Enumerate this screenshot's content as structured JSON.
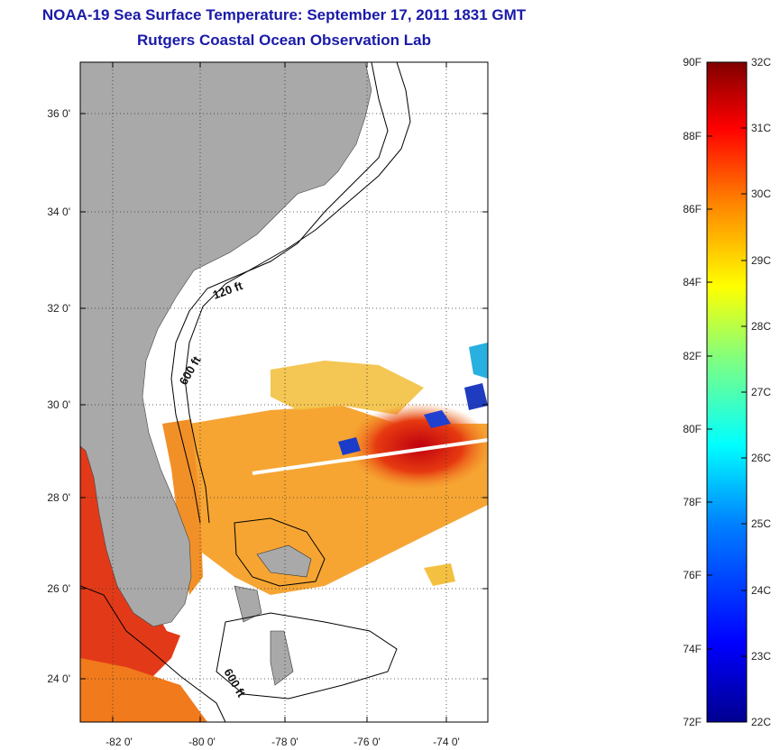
{
  "header": {
    "title": "NOAA-19 Sea Surface Temperature:  September 17, 2011 1831 GMT",
    "subtitle": "Rutgers Coastal Ocean Observation Lab"
  },
  "map": {
    "lon_ticks": [
      "-82 0'",
      "-80 0'",
      "-78 0'",
      "-76 0'",
      "-74 0'"
    ],
    "lat_ticks": [
      "36 0'",
      "34 0'",
      "32 0'",
      "30 0'",
      "28 0'",
      "26 0'",
      "24 0'"
    ],
    "contour_labels": {
      "shelf_120": "120 ft",
      "slope_600": "600 ft",
      "south_600": "600 ft"
    },
    "colors": {
      "land": "#a9a9a9",
      "no_data": "#ffffff",
      "contour": "#000000"
    }
  },
  "colorbar": {
    "fahrenheit_labels": [
      "90F",
      "88F",
      "86F",
      "84F",
      "82F",
      "80F",
      "78F",
      "76F",
      "74F",
      "72F"
    ],
    "celsius_labels": [
      "32C",
      "31C",
      "30C",
      "29C",
      "28C",
      "27C",
      "26C",
      "25C",
      "24C",
      "23C",
      "22C"
    ],
    "color_stops": [
      "#00008f",
      "#0000ff",
      "#0080ff",
      "#00ffff",
      "#80ff80",
      "#ffff00",
      "#ff8000",
      "#ff0000",
      "#800000"
    ]
  }
}
